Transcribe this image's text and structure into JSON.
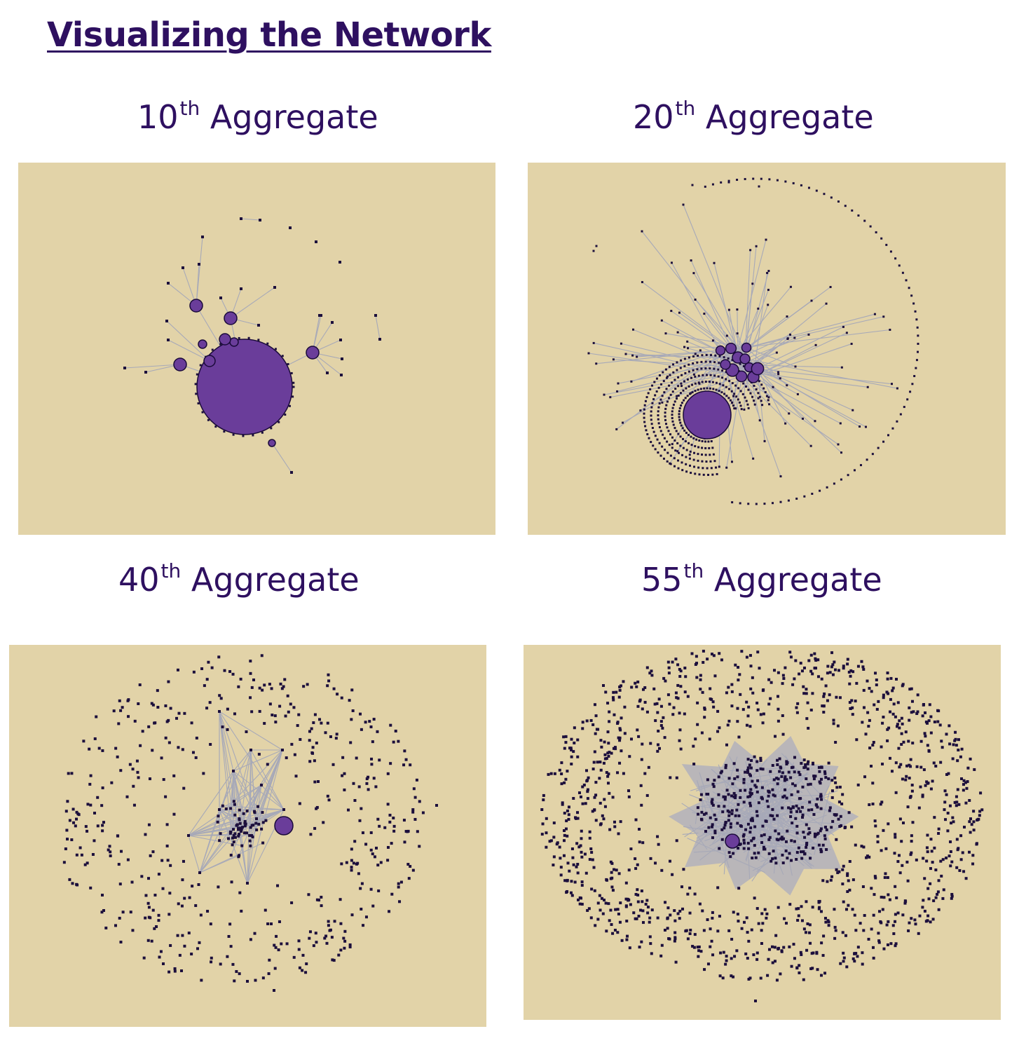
{
  "page": {
    "title": "Visualizing the Network"
  },
  "colors": {
    "background": "#ffffff",
    "title_text": "#2e1060",
    "panel_background": "#e2d3a8",
    "node_fill": "#6a3d9a",
    "node_stroke": "#1a0a3a",
    "edge": "#a7a9b8",
    "dot": "#1c0f3c"
  },
  "panels": [
    {
      "number": "10",
      "suffix": "th",
      "label": "Aggregate"
    },
    {
      "number": "20",
      "suffix": "th",
      "label": "Aggregate"
    },
    {
      "number": "40",
      "suffix": "th",
      "label": "Aggregate"
    },
    {
      "number": "55",
      "suffix": "th",
      "label": "Aggregate"
    }
  ]
}
